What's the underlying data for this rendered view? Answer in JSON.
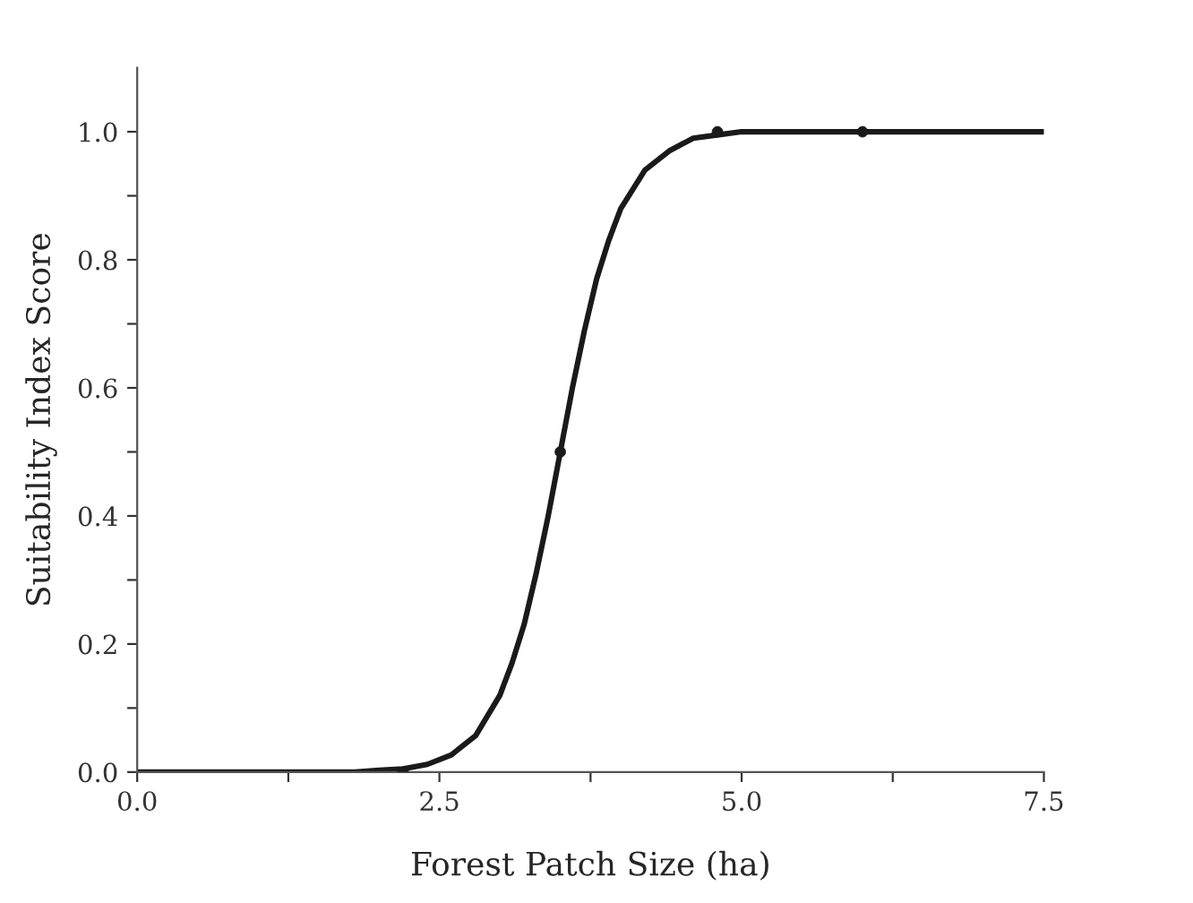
{
  "chart_data": {
    "type": "line",
    "xlabel": "Forest Patch Size (ha)",
    "ylabel": "Suitability Index Score",
    "xlim": [
      0,
      7.5
    ],
    "xticks": [
      {
        "value": 0,
        "label": "0.0"
      },
      {
        "value": 1.25,
        "label": null
      },
      {
        "value": 2.5,
        "label": "2.5"
      },
      {
        "value": 3.75,
        "label": null
      },
      {
        "value": 5.0,
        "label": "5.0"
      },
      {
        "value": 6.25,
        "label": null
      },
      {
        "value": 7.5,
        "label": "7.5"
      }
    ],
    "ylim": [
      0,
      1.1
    ],
    "yticks": [
      {
        "value": 0,
        "label": "0.0"
      },
      {
        "value": 0.1,
        "label": null
      },
      {
        "value": 0.2,
        "label": "0.2"
      },
      {
        "value": 0.3,
        "label": null
      },
      {
        "value": 0.4,
        "label": "0.4"
      },
      {
        "value": 0.5,
        "label": null
      },
      {
        "value": 0.6,
        "label": "0.6"
      },
      {
        "value": 0.7,
        "label": null
      },
      {
        "value": 0.8,
        "label": "0.8"
      },
      {
        "value": 0.9,
        "label": null
      },
      {
        "value": 1.0,
        "label": "1.0"
      }
    ],
    "grid": false,
    "legend": false,
    "series": [
      {
        "color": "#1a1a1a",
        "marker": "none",
        "line_style": "solid",
        "x": [
          0,
          1.8,
          2.0,
          2.2,
          2.4,
          2.6,
          2.8,
          3.0,
          3.1,
          3.2,
          3.3,
          3.4,
          3.5,
          3.6,
          3.7,
          3.8,
          3.9,
          4.0,
          4.2,
          4.4,
          4.6,
          4.8,
          5.0,
          5.5,
          7.5
        ],
        "values": [
          0,
          0,
          0.003,
          0.005,
          0.012,
          0.027,
          0.057,
          0.12,
          0.17,
          0.23,
          0.31,
          0.4,
          0.5,
          0.6,
          0.69,
          0.77,
          0.83,
          0.88,
          0.94,
          0.97,
          0.99,
          0.995,
          1.0,
          1.0,
          1.0
        ]
      },
      {
        "type": "scatter",
        "color": "#1a1a1a",
        "marker": "circle",
        "x": [
          2.2,
          3.5,
          4.8,
          6.0
        ],
        "values": [
          0,
          0.5,
          1.0,
          1.0
        ]
      }
    ]
  }
}
